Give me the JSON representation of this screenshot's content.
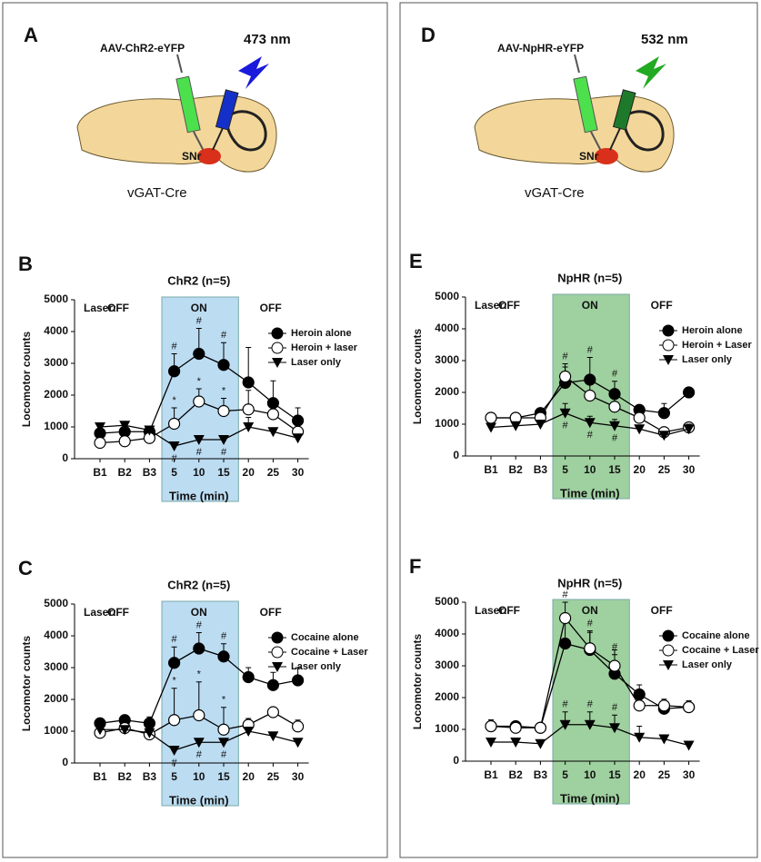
{
  "schematics": [
    {
      "panel": "A",
      "vector": "AAV-ChR2-eYFP",
      "wavelength": "473 nm",
      "region": "SNr",
      "mouse": "vGAT-Cre",
      "color": "#1a1adc",
      "fiber_color": "#1530c8",
      "virus_color": "#4de04d"
    },
    {
      "panel": "D",
      "vector": "AAV-NpHR-eYFP",
      "wavelength": "532 nm",
      "region": "SNr",
      "mouse": "vGAT-Cre",
      "color": "#22aa22",
      "fiber_color": "#1e7a2a",
      "virus_color": "#4de04d"
    }
  ],
  "chart_data": [
    {
      "type": "line",
      "panel": "B",
      "title": "ChR2 (n=5)",
      "title_color": "#1a1adc",
      "shade_color": "#bcdcf2",
      "x_label": "Time (min)",
      "y_label": "Locomotor counts",
      "annotations": [
        "Laser:",
        "OFF",
        "ON",
        "OFF"
      ],
      "categories": [
        "B1",
        "B2",
        "B3",
        "5",
        "10",
        "15",
        "20",
        "25",
        "30"
      ],
      "ylim": [
        0,
        5000
      ],
      "yticks": [
        0,
        1000,
        2000,
        3000,
        4000,
        5000
      ],
      "series": [
        {
          "name": "Heroin alone",
          "marker": "circle-filled",
          "color": "#000000",
          "values": [
            800,
            850,
            850,
            2750,
            3300,
            2950,
            2400,
            1750,
            1200
          ],
          "errors": [
            100,
            100,
            100,
            550,
            800,
            700,
            1100,
            700,
            400
          ],
          "sig": [
            null,
            null,
            null,
            "#",
            "#",
            "#",
            null,
            null,
            null
          ],
          "sig_position": "above"
        },
        {
          "name": "Heroin + laser",
          "marker": "circle-open",
          "color": "#000000",
          "values": [
            500,
            550,
            650,
            1100,
            1800,
            1500,
            1550,
            1400,
            850
          ],
          "errors": [
            100,
            100,
            100,
            500,
            400,
            400,
            600,
            500,
            300
          ],
          "sig": [
            null,
            null,
            null,
            "*",
            "*",
            "*",
            null,
            null,
            null
          ],
          "sig_position": "above"
        },
        {
          "name": "Laser only",
          "marker": "triangle-down",
          "color": "#000000",
          "values": [
            1000,
            1050,
            900,
            400,
            600,
            600,
            1000,
            850,
            650
          ],
          "errors": [
            100,
            100,
            100,
            100,
            100,
            100,
            300,
            100,
            100
          ],
          "sig": [
            null,
            null,
            null,
            "#",
            "#",
            "#",
            null,
            null,
            null
          ],
          "sig_position": "below"
        }
      ]
    },
    {
      "type": "line",
      "panel": "C",
      "title": "ChR2 (n=5)",
      "title_color": "#1a1adc",
      "shade_color": "#bcdcf2",
      "x_label": "Time (min)",
      "y_label": "Locomotor counts",
      "annotations": [
        "Laser:",
        "OFF",
        "ON",
        "OFF"
      ],
      "categories": [
        "B1",
        "B2",
        "B3",
        "5",
        "10",
        "15",
        "20",
        "25",
        "30"
      ],
      "ylim": [
        0,
        5000
      ],
      "yticks": [
        0,
        1000,
        2000,
        3000,
        4000,
        5000
      ],
      "series": [
        {
          "name": "Cocaine alone",
          "marker": "circle-filled",
          "color": "#000000",
          "values": [
            1250,
            1350,
            1250,
            3150,
            3600,
            3350,
            2700,
            2450,
            2600
          ],
          "errors": [
            150,
            150,
            200,
            500,
            500,
            400,
            300,
            400,
            400
          ],
          "sig": [
            null,
            null,
            null,
            "#",
            "#",
            "#",
            null,
            null,
            null
          ],
          "sig_position": "above"
        },
        {
          "name": "Cocaine + Laser",
          "marker": "circle-open",
          "color": "#000000",
          "values": [
            950,
            1100,
            900,
            1350,
            1500,
            1050,
            1200,
            1600,
            1150
          ],
          "errors": [
            100,
            100,
            100,
            1000,
            1050,
            700,
            200,
            100,
            200
          ],
          "sig": [
            null,
            null,
            null,
            "*",
            "*",
            "*",
            null,
            null,
            null
          ],
          "sig_position": "above"
        },
        {
          "name": "Laser only",
          "marker": "triangle-down",
          "color": "#000000",
          "values": [
            1050,
            1050,
            950,
            400,
            650,
            650,
            1000,
            850,
            650
          ],
          "errors": [
            100,
            100,
            100,
            100,
            100,
            100,
            100,
            100,
            100
          ],
          "sig": [
            null,
            null,
            null,
            "#",
            "#",
            "#",
            null,
            null,
            null
          ],
          "sig_position": "below"
        }
      ]
    },
    {
      "type": "line",
      "panel": "E",
      "title": "NpHR (n=5)",
      "title_color": "#22aa22",
      "shade_color": "#9fd09f",
      "x_label": "Time (min)",
      "y_label": "Locomotor counts",
      "annotations": [
        "Laser:",
        "OFF",
        "ON",
        "OFF"
      ],
      "categories": [
        "B1",
        "B2",
        "B3",
        "5",
        "10",
        "15",
        "20",
        "25",
        "30"
      ],
      "ylim": [
        0,
        5000
      ],
      "yticks": [
        0,
        1000,
        2000,
        3000,
        4000,
        5000
      ],
      "series": [
        {
          "name": "Heroin alone",
          "marker": "circle-filled",
          "color": "#000000",
          "values": [
            1200,
            1200,
            1350,
            2300,
            2400,
            1950,
            1450,
            1350,
            2000
          ],
          "errors": [
            100,
            100,
            150,
            600,
            700,
            400,
            150,
            300,
            100
          ],
          "sig": [
            null,
            null,
            null,
            "#",
            "#",
            "#",
            null,
            null,
            null
          ],
          "sig_position": "above"
        },
        {
          "name": "Heroin + Laser",
          "marker": "circle-open",
          "color": "#000000",
          "values": [
            1200,
            1200,
            1200,
            2500,
            1900,
            1550,
            1200,
            750,
            900
          ],
          "errors": [
            100,
            100,
            100,
            300,
            400,
            300,
            200,
            100,
            100
          ],
          "sig": [
            null,
            null,
            null,
            null,
            null,
            null,
            null,
            null,
            null
          ],
          "sig_position": "above"
        },
        {
          "name": "Laser only",
          "marker": "triangle-down",
          "color": "#000000",
          "values": [
            900,
            950,
            1000,
            1350,
            1050,
            950,
            850,
            650,
            850
          ],
          "errors": [
            100,
            100,
            100,
            300,
            200,
            200,
            100,
            100,
            150
          ],
          "sig": [
            null,
            null,
            null,
            "#",
            "#",
            "#",
            null,
            null,
            null
          ],
          "sig_position": "below"
        }
      ]
    },
    {
      "type": "line",
      "panel": "F",
      "title": "NpHR (n=5)",
      "title_color": "#22aa22",
      "shade_color": "#9fd09f",
      "x_label": "Time (min)",
      "y_label": "Locomotor counts",
      "annotations": [
        "Laser:",
        "OFF",
        "ON",
        "OFF"
      ],
      "categories": [
        "B1",
        "B2",
        "B3",
        "5",
        "10",
        "15",
        "20",
        "25",
        "30"
      ],
      "ylim": [
        0,
        5000
      ],
      "yticks": [
        0,
        1000,
        2000,
        3000,
        4000,
        5000
      ],
      "series": [
        {
          "name": "Cocaine alone",
          "marker": "circle-filled",
          "color": "#000000",
          "values": [
            1100,
            1100,
            1050,
            3700,
            3500,
            2750,
            2100,
            1650,
            1700
          ],
          "errors": [
            200,
            100,
            100,
            700,
            600,
            600,
            300,
            200,
            100
          ],
          "sig": [
            null,
            null,
            null,
            null,
            "#",
            "#",
            null,
            null,
            null
          ],
          "sig_position": "above"
        },
        {
          "name": "Cocaine + Laser",
          "marker": "circle-open",
          "color": "#000000",
          "values": [
            1100,
            1050,
            1050,
            4500,
            3550,
            3000,
            1750,
            1750,
            1700
          ],
          "errors": [
            200,
            100,
            100,
            500,
            500,
            500,
            300,
            200,
            200
          ],
          "sig": [
            null,
            null,
            null,
            "#",
            null,
            null,
            null,
            null,
            null
          ],
          "sig_position": "above"
        },
        {
          "name": "Laser only",
          "marker": "triangle-down",
          "color": "#000000",
          "values": [
            600,
            600,
            550,
            1150,
            1150,
            1050,
            750,
            700,
            500
          ],
          "errors": [
            100,
            100,
            100,
            400,
            400,
            400,
            350,
            100,
            100
          ],
          "sig": [
            null,
            null,
            null,
            "#",
            "#",
            "#",
            null,
            null,
            null
          ],
          "sig_position": "above"
        }
      ]
    }
  ]
}
